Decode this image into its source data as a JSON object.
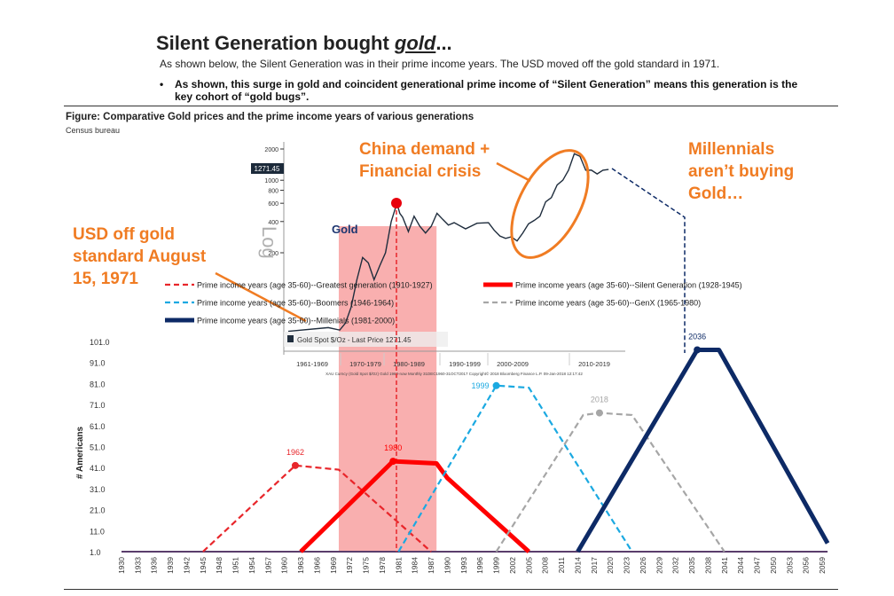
{
  "header": {
    "title_prefix": "Silent Generation bought ",
    "title_em": "gold",
    "title_suffix": "...",
    "subtitle": "As shown below, the Silent Generation was in their prime income years.  The USD moved off the gold standard in 1971.",
    "bullet": "As shown, this surge in gold and coincident generational prime income of “Silent Generation” means this generation is the key cohort of “gold bugs”."
  },
  "figure": {
    "title": "Figure: Comparative Gold prices and the prime income years of various generations",
    "source": "Census bureau"
  },
  "annotations": {
    "china": "China demand + Financial crisis",
    "millennials": "Millennials aren’t buying Gold…",
    "usd": "USD off gold standard August 15, 1971"
  },
  "colors": {
    "accent": "#f07c23",
    "greatest": "#e8262b",
    "silent": "#ff0000",
    "boomers": "#1ba9e1",
    "genx": "#a6a6a6",
    "millennials": "#0d2a66",
    "shade": "#f79b9b"
  },
  "chart_data": [
    {
      "type": "line",
      "ylabel": "# Americans",
      "ylim": [
        1,
        101
      ],
      "xlim": [
        1930,
        2060
      ],
      "yticks": [
        "101.0",
        "91.0",
        "81.0",
        "71.0",
        "61.0",
        "51.0",
        "41.0",
        "31.0",
        "21.0",
        "11.0",
        "1.0"
      ],
      "xticks": [
        1930,
        1933,
        1936,
        1939,
        1942,
        1945,
        1948,
        1951,
        1954,
        1957,
        1960,
        1963,
        1966,
        1969,
        1972,
        1975,
        1978,
        1981,
        1984,
        1987,
        1990,
        1993,
        1996,
        1999,
        2002,
        2005,
        2008,
        2011,
        2014,
        2017,
        2020,
        2023,
        2026,
        2029,
        2032,
        2035,
        2038,
        2041,
        2044,
        2047,
        2050,
        2053,
        2056,
        2059
      ],
      "series": [
        {
          "name": "Prime income years (age 35-60)--Greatest generation (1910-1927)",
          "style": "dashed",
          "color": "#e8262b",
          "peak_label": "1962",
          "points": [
            [
              1945,
              1
            ],
            [
              1962,
              42
            ],
            [
              1970,
              40
            ],
            [
              1987,
              1
            ]
          ]
        },
        {
          "name": "Prime income years (age 35-60)--Silent Generation (1928-1945)",
          "style": "solid-thick",
          "color": "#ff0000",
          "peak_label": "1980",
          "points": [
            [
              1963,
              1
            ],
            [
              1980,
              44
            ],
            [
              1988,
              43
            ],
            [
              1990,
              36
            ],
            [
              2005,
              1
            ]
          ]
        },
        {
          "name": "Prime income years (age 35-60)--Boomers (1946-1964)",
          "style": "dashed",
          "color": "#1ba9e1",
          "peak_label": "1999",
          "points": [
            [
              1981,
              1
            ],
            [
              1999,
              80
            ],
            [
              2005,
              79
            ],
            [
              2024,
              1
            ]
          ]
        },
        {
          "name": "Prime income years (age 35-60)--GenX (1965-1980)",
          "style": "dashed",
          "color": "#a6a6a6",
          "peak_label": "2018",
          "points": [
            [
              1999,
              1
            ],
            [
              2015,
              66
            ],
            [
              2018,
              67
            ],
            [
              2024,
              66
            ],
            [
              2041,
              1
            ]
          ]
        },
        {
          "name": "Prime income years (age 35-60)--Millenials (1981-2000)",
          "style": "solid-thick",
          "color": "#0d2a66",
          "peak_label": "2036",
          "points": [
            [
              2014,
              1
            ],
            [
              2036,
              97
            ],
            [
              2040,
              97
            ],
            [
              2060,
              5
            ]
          ]
        }
      ],
      "shaded_range": [
        1970,
        1988
      ]
    },
    {
      "type": "line",
      "title": "Gold",
      "scale": "log",
      "yaxis_label": "Log",
      "last_value_label": "1271.45",
      "yticks": [
        2000,
        1000,
        800,
        600,
        400,
        200
      ],
      "xticks": [
        "1961-1969",
        "1970-1979",
        "1980-1989",
        "1990-1999",
        "2000-2009",
        "2010-2019"
      ],
      "legend": "Gold Spot $/Oz - Last Price 1271.45",
      "footer": "XAU Curncy (Gold Spot  $/Oz) Gold 1960-now  Monthly 31DEC1960-31OCT2017    Copyright© 2018 Bloomberg Finance L.P.    09-Jan-2018 12:17:42",
      "points": [
        [
          1961,
          35
        ],
        [
          1968,
          38
        ],
        [
          1970,
          36
        ],
        [
          1971,
          42
        ],
        [
          1972,
          60
        ],
        [
          1973,
          110
        ],
        [
          1974,
          180
        ],
        [
          1975,
          160
        ],
        [
          1976,
          110
        ],
        [
          1977,
          150
        ],
        [
          1978,
          200
        ],
        [
          1979,
          400
        ],
        [
          1980,
          600
        ],
        [
          1980.5,
          480
        ],
        [
          1981,
          440
        ],
        [
          1982,
          320
        ],
        [
          1983,
          450
        ],
        [
          1984,
          360
        ],
        [
          1985,
          310
        ],
        [
          1986,
          360
        ],
        [
          1987,
          480
        ],
        [
          1988,
          420
        ],
        [
          1989,
          370
        ],
        [
          1990,
          390
        ],
        [
          1992,
          340
        ],
        [
          1994,
          385
        ],
        [
          1996,
          390
        ],
        [
          1997,
          330
        ],
        [
          1998,
          290
        ],
        [
          1999,
          275
        ],
        [
          2000,
          285
        ],
        [
          2001,
          260
        ],
        [
          2002,
          310
        ],
        [
          2003,
          380
        ],
        [
          2004,
          410
        ],
        [
          2005,
          450
        ],
        [
          2006,
          620
        ],
        [
          2007,
          680
        ],
        [
          2008,
          900
        ],
        [
          2009,
          1000
        ],
        [
          2010,
          1250
        ],
        [
          2011,
          1800
        ],
        [
          2012,
          1700
        ],
        [
          2013,
          1250
        ],
        [
          2014,
          1250
        ],
        [
          2015,
          1150
        ],
        [
          2016,
          1250
        ],
        [
          2017,
          1270
        ]
      ]
    }
  ]
}
